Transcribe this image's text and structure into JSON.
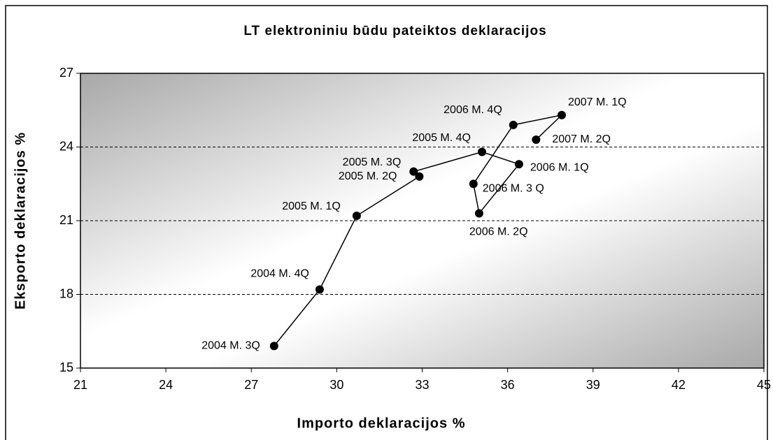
{
  "chart_data": {
    "type": "scatter",
    "line": true,
    "title": "LT elektroniniu būdu pateiktos deklaracijos",
    "xlabel": "Importo deklaracijos %",
    "ylabel": "Eksporto deklaracijos %",
    "labels": [
      "2004 M. 3Q",
      "2004 M. 4Q",
      "2005 M. 1Q",
      "2005 M. 2Q",
      "2005 M. 3Q",
      "2005 M. 4Q",
      "2006 M. 1Q",
      "2006 M. 2Q",
      "2006 M. 3 Q",
      "2006 M. 4Q",
      "2007 M. 1Q",
      "2007 M. 2Q"
    ],
    "x": [
      27.8,
      29.4,
      30.7,
      32.9,
      32.7,
      35.1,
      36.4,
      35.0,
      34.8,
      36.2,
      37.9,
      37.0
    ],
    "y": [
      15.9,
      18.2,
      21.2,
      22.8,
      23.0,
      23.8,
      23.3,
      21.3,
      22.5,
      24.9,
      25.3,
      24.3
    ],
    "color": "#000000",
    "xlim": [
      21,
      45
    ],
    "xticks": [
      21,
      24,
      27,
      30,
      33,
      36,
      39,
      42,
      45
    ],
    "ylim": [
      15,
      27
    ],
    "yticks": [
      15,
      18,
      21,
      24,
      27
    ],
    "grid": true
  }
}
